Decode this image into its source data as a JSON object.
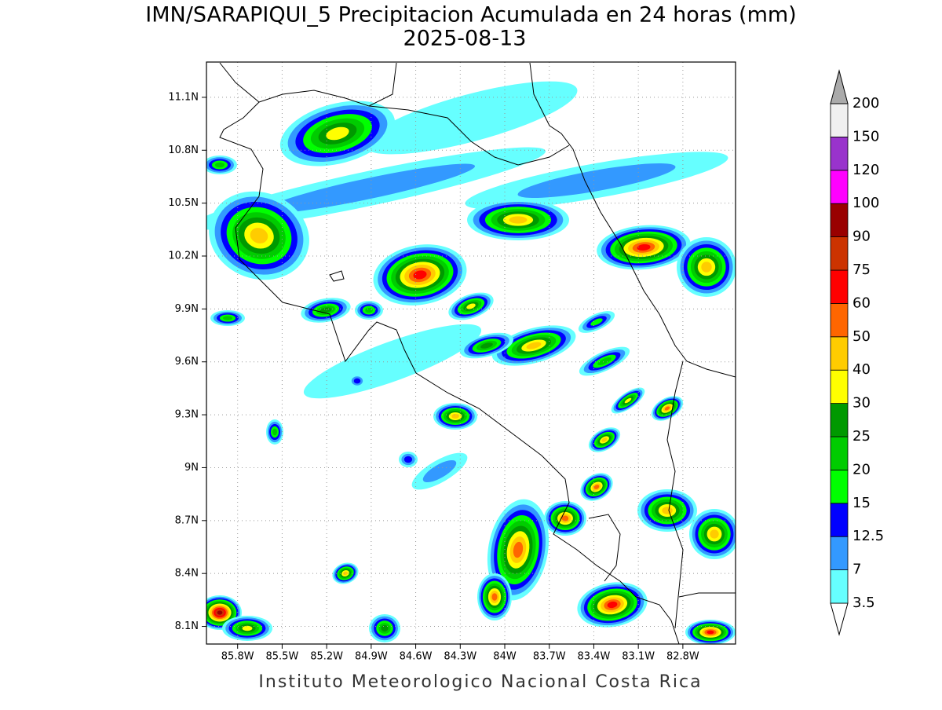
{
  "title": "IMN/SARAPIQUI_5 Precipitacion Acumulada en 24 horas (mm)",
  "subtitle": "2025-08-13",
  "map": {
    "xlim": [
      -86.01,
      -82.445
    ],
    "ylim": [
      8.0,
      11.3
    ],
    "xticks": [
      {
        "value": -85.8,
        "label": "85.8W"
      },
      {
        "value": -85.5,
        "label": "85.5W"
      },
      {
        "value": -85.2,
        "label": "85.2W"
      },
      {
        "value": -84.9,
        "label": "84.9W"
      },
      {
        "value": -84.6,
        "label": "84.6W"
      },
      {
        "value": -84.3,
        "label": "84.3W"
      },
      {
        "value": -84.0,
        "label": "84W"
      },
      {
        "value": -83.7,
        "label": "83.7W"
      },
      {
        "value": -83.4,
        "label": "83.4W"
      },
      {
        "value": -83.1,
        "label": "83.1W"
      },
      {
        "value": -82.8,
        "label": "82.8W"
      }
    ],
    "yticks": [
      {
        "value": 8.1,
        "label": "8.1N"
      },
      {
        "value": 8.4,
        "label": "8.4N"
      },
      {
        "value": 8.7,
        "label": "8.7N"
      },
      {
        "value": 9.0,
        "label": "9N"
      },
      {
        "value": 9.3,
        "label": "9.3N"
      },
      {
        "value": 9.6,
        "label": "9.6N"
      },
      {
        "value": 9.9,
        "label": "9.9N"
      },
      {
        "value": 10.2,
        "label": "10.2N"
      },
      {
        "value": 10.5,
        "label": "10.5N"
      },
      {
        "value": 10.8,
        "label": "10.8N"
      },
      {
        "value": 11.1,
        "label": "11.1N"
      }
    ],
    "grid": true
  },
  "colorbar": {
    "levels": [
      "3.5",
      "7",
      "12.5",
      "15",
      "20",
      "25",
      "30",
      "40",
      "50",
      "60",
      "75",
      "90",
      "100",
      "120",
      "150",
      "200"
    ],
    "colors": [
      "#ffffff",
      "#66ffff",
      "#3399ff",
      "#0000ff",
      "#00ff00",
      "#00cc00",
      "#009900",
      "#ffff00",
      "#ffcc00",
      "#ff6600",
      "#ff0000",
      "#cc3300",
      "#990000",
      "#ff00ff",
      "#9933cc",
      "#f0f0f0",
      "#aaaaaa"
    ]
  },
  "footer": "Instituto Meteorologico Nacional Costa Rica"
}
